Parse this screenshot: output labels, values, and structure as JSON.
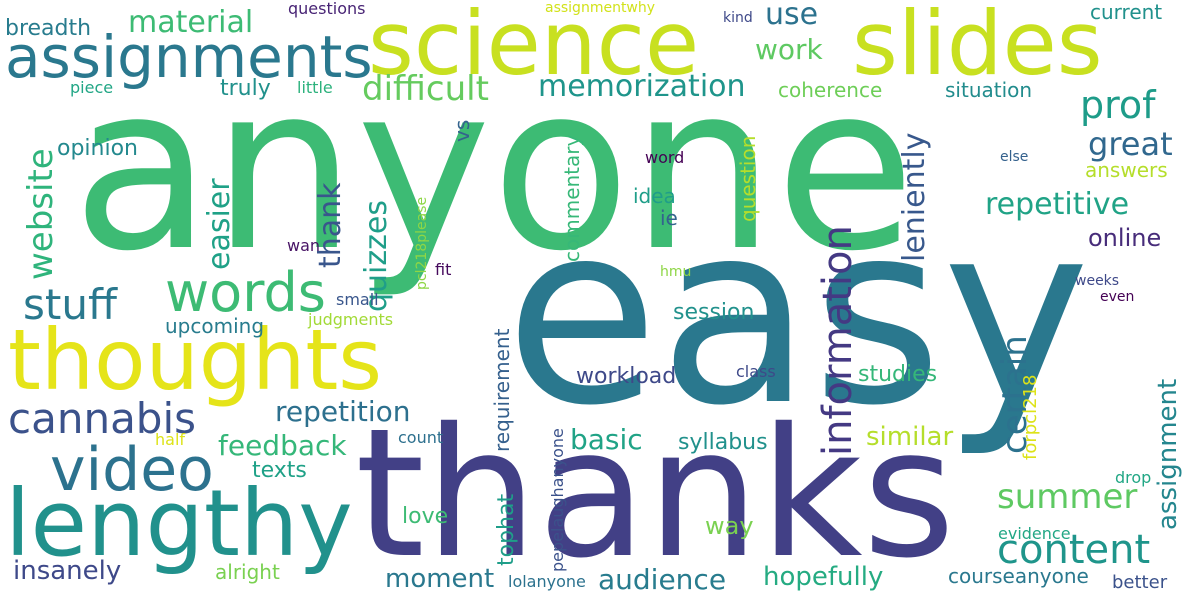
{
  "cloud": {
    "words": [
      {
        "key": "anyone",
        "text": "anyone",
        "color": "#3dbb74"
      },
      {
        "key": "easy",
        "text": "easy",
        "color": "#2a788e"
      },
      {
        "key": "thanks",
        "text": "thanks",
        "color": "#424086"
      },
      {
        "key": "science",
        "text": "science",
        "color": "#c8e020"
      },
      {
        "key": "slides",
        "text": "slides",
        "color": "#c8e020"
      },
      {
        "key": "assignments",
        "text": "assignments",
        "color": "#2a788e"
      },
      {
        "key": "thoughts",
        "text": "thoughts",
        "color": "#e5e419"
      },
      {
        "key": "lengthy",
        "text": "lengthy",
        "color": "#21918c"
      },
      {
        "key": "video",
        "text": "video",
        "color": "#2c728e"
      },
      {
        "key": "words",
        "text": "words",
        "color": "#3dbb74"
      },
      {
        "key": "stuff",
        "text": "stuff",
        "color": "#2a788e"
      },
      {
        "key": "cannabis",
        "text": "cannabis",
        "color": "#3b528b"
      },
      {
        "key": "website",
        "text": "website",
        "color": "#2fb47c"
      },
      {
        "key": "material",
        "text": "material",
        "color": "#3dbb74"
      },
      {
        "key": "breadth",
        "text": "breadth",
        "color": "#287c8e"
      },
      {
        "key": "questions_top",
        "text": "questions",
        "color": "#482475"
      },
      {
        "key": "assignmentwhy",
        "text": "assignmentwhy",
        "color": "#d2e21b"
      },
      {
        "key": "kind",
        "text": "kind",
        "color": "#3e4989"
      },
      {
        "key": "use",
        "text": "use",
        "color": "#2c728e"
      },
      {
        "key": "current",
        "text": "current",
        "color": "#21918c"
      },
      {
        "key": "difficult",
        "text": "difficult",
        "color": "#65cb5e"
      },
      {
        "key": "memorization",
        "text": "memorization",
        "color": "#1f958b"
      },
      {
        "key": "work",
        "text": "work",
        "color": "#5ec962"
      },
      {
        "key": "prof",
        "text": "prof",
        "color": "#1e9c89"
      },
      {
        "key": "truly",
        "text": "truly",
        "color": "#21918c"
      },
      {
        "key": "little",
        "text": "little",
        "color": "#2db27d"
      },
      {
        "key": "piece",
        "text": "piece",
        "color": "#21a685"
      },
      {
        "key": "coherence",
        "text": "coherence",
        "color": "#6ece58"
      },
      {
        "key": "situation",
        "text": "situation",
        "color": "#228c8d"
      },
      {
        "key": "opinion",
        "text": "opinion",
        "color": "#23898e"
      },
      {
        "key": "great",
        "text": "great",
        "color": "#31688e"
      },
      {
        "key": "answers",
        "text": "answers",
        "color": "#b5de2b"
      },
      {
        "key": "repetitive",
        "text": "repetitive",
        "color": "#20a386"
      },
      {
        "key": "online",
        "text": "online",
        "color": "#472c7a"
      },
      {
        "key": "word",
        "text": "word",
        "color": "#440154"
      },
      {
        "key": "else",
        "text": "else",
        "color": "#34618d"
      },
      {
        "key": "idea",
        "text": "idea",
        "color": "#1f9e89"
      },
      {
        "key": "ie",
        "text": "ie",
        "color": "#33638d"
      },
      {
        "key": "vs",
        "text": "vs",
        "color": "#33638d"
      },
      {
        "key": "information",
        "text": "information",
        "color": "#443983"
      },
      {
        "key": "leniently",
        "text": "leniently",
        "color": "#38588c"
      },
      {
        "key": "question",
        "text": "question",
        "color": "#b5de2b"
      },
      {
        "key": "commentary",
        "text": "commentary",
        "color": "#37b878"
      },
      {
        "key": "quizzes",
        "text": "quizzes",
        "color": "#1f9e89"
      },
      {
        "key": "thank",
        "text": "thank",
        "color": "#39568c"
      },
      {
        "key": "easier",
        "text": "easier",
        "color": "#1fa187"
      },
      {
        "key": "pcl218please",
        "text": "pcl218please",
        "color": "#8ed645"
      },
      {
        "key": "wan",
        "text": "wan",
        "color": "#471365"
      },
      {
        "key": "fit",
        "text": "fit",
        "color": "#460a5d"
      },
      {
        "key": "hmu",
        "text": "hmu",
        "color": "#8ed645"
      },
      {
        "key": "even",
        "text": "even",
        "color": "#440154"
      },
      {
        "key": "weeks",
        "text": "weeks",
        "color": "#3e4989"
      },
      {
        "key": "small",
        "text": "small",
        "color": "#39568c"
      },
      {
        "key": "judgments",
        "text": "judgments",
        "color": "#a2da37"
      },
      {
        "key": "upcoming",
        "text": "upcoming",
        "color": "#287c8e"
      },
      {
        "key": "session",
        "text": "session",
        "color": "#21918c"
      },
      {
        "key": "certain",
        "text": "certain",
        "color": "#2c728e"
      },
      {
        "key": "assignment",
        "text": "assignment",
        "color": "#24868e"
      },
      {
        "key": "summer",
        "text": "summer",
        "color": "#5ec962"
      },
      {
        "key": "content",
        "text": "content",
        "color": "#1f958b"
      },
      {
        "key": "forpcl218",
        "text": "forpcl218",
        "color": "#dde318"
      },
      {
        "key": "requirement",
        "text": "requirement",
        "color": "#35608d"
      },
      {
        "key": "repetition",
        "text": "repetition",
        "color": "#2d708e"
      },
      {
        "key": "studies",
        "text": "studies",
        "color": "#35b779"
      },
      {
        "key": "similar",
        "text": "similar",
        "color": "#b5de2b"
      },
      {
        "key": "feedback",
        "text": "feedback",
        "color": "#35b779"
      },
      {
        "key": "basic",
        "text": "basic",
        "color": "#20a386"
      },
      {
        "key": "syllabus",
        "text": "syllabus",
        "color": "#21918c"
      },
      {
        "key": "workload",
        "text": "workload",
        "color": "#3e4989"
      },
      {
        "key": "class",
        "text": "class",
        "color": "#3e4989"
      },
      {
        "key": "half",
        "text": "half",
        "color": "#dde318"
      },
      {
        "key": "count",
        "text": "count",
        "color": "#2d708e"
      },
      {
        "key": "texts",
        "text": "texts",
        "color": "#1fa187"
      },
      {
        "key": "drop",
        "text": "drop",
        "color": "#22a785"
      },
      {
        "key": "pepelaughanyone",
        "text": "pepelaughanyone",
        "color": "#3b528b"
      },
      {
        "key": "tophat",
        "text": "tophat",
        "color": "#1f9e89"
      },
      {
        "key": "love",
        "text": "love",
        "color": "#3dbb74"
      },
      {
        "key": "way",
        "text": "way",
        "color": "#7ad151"
      },
      {
        "key": "evidence",
        "text": "evidence",
        "color": "#22a785"
      },
      {
        "key": "insanely",
        "text": "insanely",
        "color": "#3e4989"
      },
      {
        "key": "alright",
        "text": "alright",
        "color": "#7ad151"
      },
      {
        "key": "moment",
        "text": "moment",
        "color": "#2a788e"
      },
      {
        "key": "lolanyone",
        "text": "lolanyone",
        "color": "#2c728e"
      },
      {
        "key": "audience",
        "text": "audience",
        "color": "#287c8e"
      },
      {
        "key": "hopefully",
        "text": "hopefully",
        "color": "#25ab82"
      },
      {
        "key": "courseanyone",
        "text": "courseanyone",
        "color": "#2a788e"
      },
      {
        "key": "better",
        "text": "better",
        "color": "#3b528b"
      }
    ]
  }
}
